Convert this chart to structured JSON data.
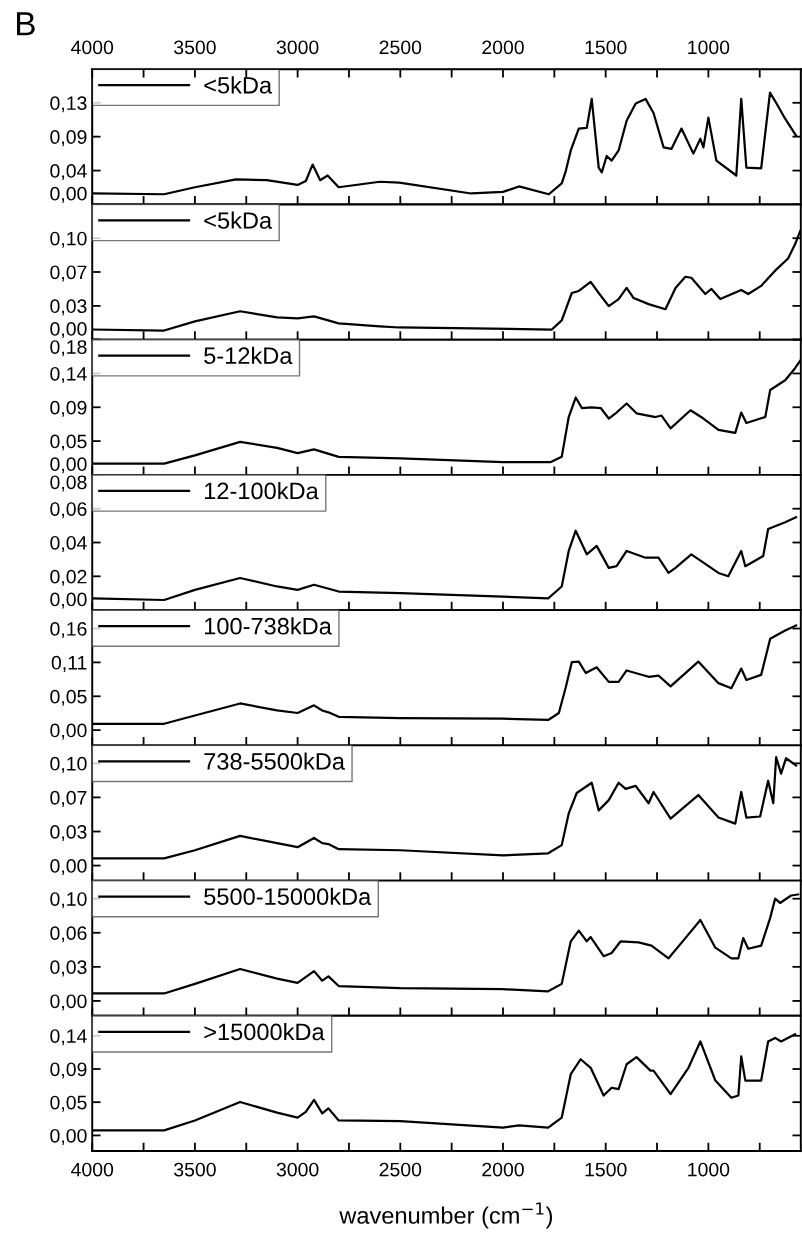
{
  "chart_data": [
    {
      "type": "line",
      "annotations": [
        "B"
      ],
      "legend": "top left",
      "tick_labels": "y",
      "xlim": [
        4000,
        550
      ],
      "x2lim": [
        4000,
        550
      ],
      "xticks": [
        4000,
        {
          "value": 3750,
          "label": null
        },
        3500,
        {
          "value": 3250,
          "label": null
        },
        3000,
        {
          "value": 2750,
          "label": null
        },
        2500,
        {
          "value": 2250,
          "label": null
        },
        2000,
        {
          "value": 1750,
          "label": null
        },
        1500,
        {
          "value": 1250,
          "label": null
        },
        1000,
        {
          "value": 750,
          "label": null
        }
      ],
      "x2ticks": [
        4000,
        {
          "value": 3750,
          "label": null
        },
        3500,
        {
          "value": 3250,
          "label": null
        },
        3000,
        {
          "value": 2750,
          "label": null
        },
        2500,
        {
          "value": 2250,
          "label": null
        },
        2000,
        {
          "value": 1750,
          "label": null
        },
        1500,
        {
          "value": 1250,
          "label": null
        },
        1000,
        {
          "value": 750,
          "label": null
        }
      ],
      "ylim": [
        0,
        0.173
      ],
      "yticks": [
        {
          "value": 0,
          "label": "0,00"
        },
        {
          "value": 0.0433,
          "label": "0,04"
        },
        {
          "value": 0.0867,
          "label": "0,09"
        },
        {
          "value": 0.13,
          "label": "0,13"
        }
      ],
      "x": [
        4000,
        3650,
        3500,
        3300,
        3150,
        3000,
        2960,
        2927,
        2890,
        2854,
        2800,
        2600,
        2505,
        2155,
        2000,
        1922,
        1777,
        1714,
        1694,
        1670,
        1631,
        1592,
        1568,
        1534,
        1519,
        1495,
        1471,
        1437,
        1398,
        1354,
        1306,
        1267,
        1218,
        1180,
        1131,
        1073,
        1039,
        1024,
        1000,
        961,
        864,
        840,
        815,
        743,
        700,
        670,
        627,
        573
      ],
      "series": [
        {
          "name": "<5kDa",
          "color": "#000000",
          "values": [
            0.014,
            0.013,
            0.022,
            0.032,
            0.031,
            0.025,
            0.03,
            0.051,
            0.031,
            0.037,
            0.022,
            0.029,
            0.028,
            0.014,
            0.016,
            0.023,
            0.013,
            0.027,
            0.043,
            0.069,
            0.097,
            0.098,
            0.135,
            0.047,
            0.041,
            0.062,
            0.056,
            0.069,
            0.107,
            0.129,
            0.135,
            0.117,
            0.073,
            0.071,
            0.097,
            0.065,
            0.084,
            0.073,
            0.111,
            0.056,
            0.037,
            0.135,
            0.047,
            0.046,
            0.143,
            0.13,
            0.11,
            0.088
          ]
        }
      ]
    },
    {
      "type": "line",
      "legend": "top left",
      "tick_labels": "y",
      "xlim": [
        4000,
        550
      ],
      "xticks": [
        4000,
        {
          "value": 3750,
          "label": null
        },
        3500,
        {
          "value": 3250,
          "label": null
        },
        3000,
        {
          "value": 2750,
          "label": null
        },
        2500,
        {
          "value": 2250,
          "label": null
        },
        2000,
        {
          "value": 1750,
          "label": null
        },
        1500,
        {
          "value": 1250,
          "label": null
        },
        1000,
        {
          "value": 750,
          "label": null
        }
      ],
      "ylim": [
        0,
        0.1333
      ],
      "yticks": [
        {
          "value": 0,
          "label": "0,00"
        },
        {
          "value": 0.0333,
          "label": "0,03"
        },
        {
          "value": 0.0667,
          "label": "0,07"
        },
        {
          "value": 0.1,
          "label": "0,10"
        }
      ],
      "x": [
        4000,
        3650,
        3500,
        3280,
        3100,
        3000,
        2920,
        2800,
        2600,
        2505,
        1762,
        1714,
        1665,
        1631,
        1573,
        1534,
        1485,
        1437,
        1398,
        1364,
        1291,
        1209,
        1160,
        1112,
        1083,
        1015,
        985,
        942,
        840,
        806,
        743,
        675,
        612,
        578,
        553
      ],
      "series": [
        {
          "name": "<5kDa",
          "color": "#000000",
          "values": [
            0.01,
            0.009,
            0.018,
            0.028,
            0.022,
            0.021,
            0.023,
            0.016,
            0.013,
            0.012,
            0.01,
            0.019,
            0.046,
            0.048,
            0.057,
            0.046,
            0.033,
            0.04,
            0.051,
            0.041,
            0.035,
            0.03,
            0.051,
            0.062,
            0.061,
            0.045,
            0.05,
            0.04,
            0.049,
            0.045,
            0.053,
            0.068,
            0.08,
            0.094,
            0.107
          ]
        }
      ]
    },
    {
      "type": "line",
      "legend": "top left",
      "tick_labels": "y",
      "xlim": [
        4000,
        550
      ],
      "xticks": [
        4000,
        {
          "value": 3750,
          "label": null
        },
        3500,
        {
          "value": 3250,
          "label": null
        },
        3000,
        {
          "value": 2750,
          "label": null
        },
        2500,
        {
          "value": 2250,
          "label": null
        },
        2000,
        {
          "value": 1750,
          "label": null
        },
        1500,
        {
          "value": 1250,
          "label": null
        },
        1000,
        {
          "value": 750,
          "label": null
        }
      ],
      "ylim": [
        0,
        0.18
      ],
      "yticks": [
        {
          "value": 0,
          "label": "0,00"
        },
        {
          "value": 0.045,
          "label": "0,05"
        },
        {
          "value": 0.09,
          "label": "0,09"
        },
        {
          "value": 0.135,
          "label": "0,14"
        },
        {
          "value": 0.18,
          "label": "0,18"
        }
      ],
      "x": [
        4000,
        3650,
        3500,
        3280,
        3100,
        3000,
        2920,
        2800,
        2500,
        2000,
        1767,
        1714,
        1680,
        1646,
        1616,
        1568,
        1524,
        1485,
        1447,
        1398,
        1350,
        1257,
        1228,
        1184,
        1087,
        1024,
        951,
        869,
        840,
        815,
        723,
        699,
        626,
        578,
        553
      ],
      "series": [
        {
          "name": "5-12kDa",
          "color": "#000000",
          "values": [
            0.015,
            0.015,
            0.026,
            0.044,
            0.036,
            0.029,
            0.034,
            0.024,
            0.022,
            0.017,
            0.017,
            0.024,
            0.077,
            0.103,
            0.089,
            0.09,
            0.089,
            0.075,
            0.083,
            0.095,
            0.082,
            0.077,
            0.079,
            0.062,
            0.086,
            0.075,
            0.06,
            0.056,
            0.083,
            0.069,
            0.077,
            0.113,
            0.126,
            0.142,
            0.152
          ]
        }
      ]
    },
    {
      "type": "line",
      "legend": "top left",
      "tick_labels": "y",
      "xlim": [
        4000,
        550
      ],
      "xticks": [
        4000,
        {
          "value": 3750,
          "label": null
        },
        3500,
        {
          "value": 3250,
          "label": null
        },
        3000,
        {
          "value": 2750,
          "label": null
        },
        2500,
        {
          "value": 2250,
          "label": null
        },
        2000,
        {
          "value": 1750,
          "label": null
        },
        1500,
        {
          "value": 1250,
          "label": null
        },
        1000,
        {
          "value": 750,
          "label": null
        }
      ],
      "ylim": [
        0,
        0.08
      ],
      "yticks": [
        {
          "value": 0,
          "label": "0,00"
        },
        {
          "value": 0.02,
          "label": "0,02"
        },
        {
          "value": 0.04,
          "label": "0,04"
        },
        {
          "value": 0.06,
          "label": "0,06"
        },
        {
          "value": 0.08,
          "label": "0,08"
        }
      ],
      "x": [
        4000,
        3650,
        3500,
        3280,
        3100,
        3000,
        2920,
        2800,
        2500,
        2000,
        1780,
        1714,
        1680,
        1646,
        1592,
        1544,
        1485,
        1447,
        1398,
        1306,
        1243,
        1194,
        1160,
        1083,
        951,
        903,
        840,
        820,
        733,
        709,
        626,
        573
      ],
      "series": [
        {
          "name": "12-100kDa",
          "color": "#000000",
          "values": [
            0.007,
            0.006,
            0.012,
            0.019,
            0.014,
            0.012,
            0.015,
            0.011,
            0.01,
            0.008,
            0.007,
            0.014,
            0.035,
            0.047,
            0.033,
            0.038,
            0.025,
            0.026,
            0.035,
            0.031,
            0.031,
            0.022,
            0.025,
            0.033,
            0.022,
            0.02,
            0.035,
            0.026,
            0.032,
            0.048,
            0.052,
            0.055
          ]
        }
      ]
    },
    {
      "type": "line",
      "legend": "top left",
      "tick_labels": "y",
      "xlim": [
        4000,
        550
      ],
      "xticks": [
        4000,
        {
          "value": 3750,
          "label": null
        },
        3500,
        {
          "value": 3250,
          "label": null
        },
        3000,
        {
          "value": 2750,
          "label": null
        },
        2500,
        {
          "value": 2250,
          "label": null
        },
        2000,
        {
          "value": 1750,
          "label": null
        },
        1500,
        {
          "value": 1250,
          "label": null
        },
        1000,
        {
          "value": 750,
          "label": null
        }
      ],
      "ylim": [
        -0.024,
        0.189
      ],
      "yticks": [
        {
          "value": 0,
          "label": "0,00"
        },
        {
          "value": 0.0533,
          "label": "0,05"
        },
        {
          "value": 0.1067,
          "label": "0,11"
        },
        {
          "value": 0.16,
          "label": "0,16"
        }
      ],
      "x": [
        4000,
        3650,
        3500,
        3280,
        3100,
        3000,
        2920,
        2880,
        2850,
        2800,
        2500,
        2000,
        1780,
        1728,
        1694,
        1665,
        1631,
        1597,
        1544,
        1485,
        1437,
        1398,
        1291,
        1243,
        1184,
        1049,
        951,
        888,
        840,
        815,
        743,
        699,
        626,
        573
      ],
      "series": [
        {
          "name": "100-738kDa",
          "color": "#000000",
          "values": [
            0.01,
            0.01,
            0.023,
            0.042,
            0.031,
            0.027,
            0.039,
            0.031,
            0.028,
            0.021,
            0.019,
            0.018,
            0.016,
            0.027,
            0.068,
            0.107,
            0.108,
            0.09,
            0.099,
            0.076,
            0.076,
            0.094,
            0.084,
            0.086,
            0.069,
            0.108,
            0.074,
            0.066,
            0.097,
            0.079,
            0.087,
            0.144,
            0.157,
            0.165
          ]
        }
      ]
    },
    {
      "type": "line",
      "legend": "top left",
      "tick_labels": "y",
      "xlim": [
        4000,
        550
      ],
      "xticks": [
        4000,
        {
          "value": 3750,
          "label": null
        },
        3500,
        {
          "value": 3250,
          "label": null
        },
        3000,
        {
          "value": 2750,
          "label": null
        },
        2500,
        {
          "value": 2250,
          "label": null
        },
        2000,
        {
          "value": 1750,
          "label": null
        },
        1500,
        {
          "value": 1250,
          "label": null
        },
        1000,
        {
          "value": 750,
          "label": null
        }
      ],
      "ylim": [
        -0.0147,
        0.1176
      ],
      "yticks": [
        {
          "value": 0,
          "label": "0,00"
        },
        {
          "value": 0.0333,
          "label": "0,03"
        },
        {
          "value": 0.0667,
          "label": "0,07"
        },
        {
          "value": 0.1,
          "label": "0,10"
        }
      ],
      "x": [
        4000,
        3650,
        3500,
        3280,
        3100,
        3000,
        2920,
        2880,
        2850,
        2800,
        2500,
        2000,
        1780,
        1714,
        1680,
        1641,
        1568,
        1534,
        1485,
        1437,
        1403,
        1354,
        1291,
        1267,
        1184,
        1049,
        951,
        869,
        840,
        815,
        748,
        709,
        684,
        670,
        646,
        622,
        573
      ],
      "series": [
        {
          "name": "738-5500kDa",
          "color": "#000000",
          "values": [
            0.007,
            0.007,
            0.015,
            0.029,
            0.022,
            0.018,
            0.027,
            0.022,
            0.021,
            0.016,
            0.015,
            0.01,
            0.012,
            0.02,
            0.051,
            0.071,
            0.081,
            0.054,
            0.064,
            0.081,
            0.075,
            0.078,
            0.061,
            0.072,
            0.046,
            0.069,
            0.047,
            0.041,
            0.072,
            0.047,
            0.048,
            0.083,
            0.061,
            0.106,
            0.09,
            0.105,
            0.098
          ]
        }
      ]
    },
    {
      "type": "line",
      "legend": "top left",
      "tick_labels": "y",
      "xlim": [
        4000,
        550
      ],
      "xticks": [
        4000,
        {
          "value": 3750,
          "label": null
        },
        3500,
        {
          "value": 3250,
          "label": null
        },
        3000,
        {
          "value": 2750,
          "label": null
        },
        2500,
        {
          "value": 2250,
          "label": null
        },
        2000,
        {
          "value": 1750,
          "label": null
        },
        1500,
        {
          "value": 1250,
          "label": null
        },
        1000,
        {
          "value": 750,
          "label": null
        }
      ],
      "ylim": [
        -0.014,
        0.113
      ],
      "yticks": [
        {
          "value": 0,
          "label": "0,00"
        },
        {
          "value": 0.032,
          "label": "0,03"
        },
        {
          "value": 0.064,
          "label": "0,06"
        },
        {
          "value": 0.096,
          "label": "0,10"
        }
      ],
      "x": [
        4000,
        3650,
        3500,
        3280,
        3100,
        3000,
        2920,
        2880,
        2850,
        2800,
        2500,
        2000,
        1780,
        1714,
        1670,
        1631,
        1592,
        1573,
        1510,
        1471,
        1427,
        1340,
        1277,
        1194,
        1112,
        1039,
        966,
        888,
        854,
        830,
        806,
        743,
        699,
        675,
        651,
        597,
        563
      ],
      "series": [
        {
          "name": "5500-15000kDa",
          "color": "#000000",
          "values": [
            0.007,
            0.007,
            0.016,
            0.03,
            0.021,
            0.017,
            0.028,
            0.019,
            0.023,
            0.014,
            0.012,
            0.011,
            0.009,
            0.016,
            0.056,
            0.066,
            0.056,
            0.06,
            0.042,
            0.045,
            0.056,
            0.055,
            0.052,
            0.04,
            0.059,
            0.076,
            0.05,
            0.04,
            0.04,
            0.059,
            0.049,
            0.052,
            0.078,
            0.096,
            0.092,
            0.099,
            0.1
          ]
        }
      ]
    },
    {
      "type": "line",
      "legend": "top left",
      "xlabel": "wavenumber (cm$^{−1}$)",
      "xlim": [
        4000,
        550
      ],
      "xticks": [
        4000,
        {
          "value": 3750,
          "label": null
        },
        3500,
        {
          "value": 3250,
          "label": null
        },
        3000,
        {
          "value": 2750,
          "label": null
        },
        2500,
        {
          "value": 2250,
          "label": null
        },
        2000,
        {
          "value": 1750,
          "label": null
        },
        1500,
        {
          "value": 1250,
          "label": null
        },
        1000,
        {
          "value": 750,
          "label": null
        }
      ],
      "ylim": [
        -0.022,
        0.168
      ],
      "yticks": [
        {
          "value": 0,
          "label": "0,00"
        },
        {
          "value": 0.0467,
          "label": "0,05"
        },
        {
          "value": 0.0933,
          "label": "0,09"
        },
        {
          "value": 0.14,
          "label": "0,14"
        }
      ],
      "x": [
        4000,
        3650,
        3500,
        3280,
        3100,
        3000,
        2960,
        2920,
        2880,
        2850,
        2800,
        2500,
        2000,
        1922,
        1780,
        1714,
        1670,
        1622,
        1573,
        1510,
        1471,
        1437,
        1398,
        1350,
        1282,
        1267,
        1184,
        1097,
        1039,
        966,
        888,
        854,
        840,
        820,
        743,
        709,
        675,
        646,
        578
      ],
      "series": [
        {
          "name": ">15000kDa",
          "color": "#000000",
          "values": [
            0.007,
            0.007,
            0.021,
            0.047,
            0.032,
            0.025,
            0.033,
            0.05,
            0.031,
            0.038,
            0.021,
            0.02,
            0.011,
            0.014,
            0.011,
            0.025,
            0.086,
            0.107,
            0.095,
            0.056,
            0.067,
            0.065,
            0.1,
            0.11,
            0.091,
            0.091,
            0.058,
            0.095,
            0.132,
            0.077,
            0.053,
            0.056,
            0.111,
            0.077,
            0.077,
            0.132,
            0.137,
            0.132,
            0.142
          ]
        }
      ]
    }
  ]
}
